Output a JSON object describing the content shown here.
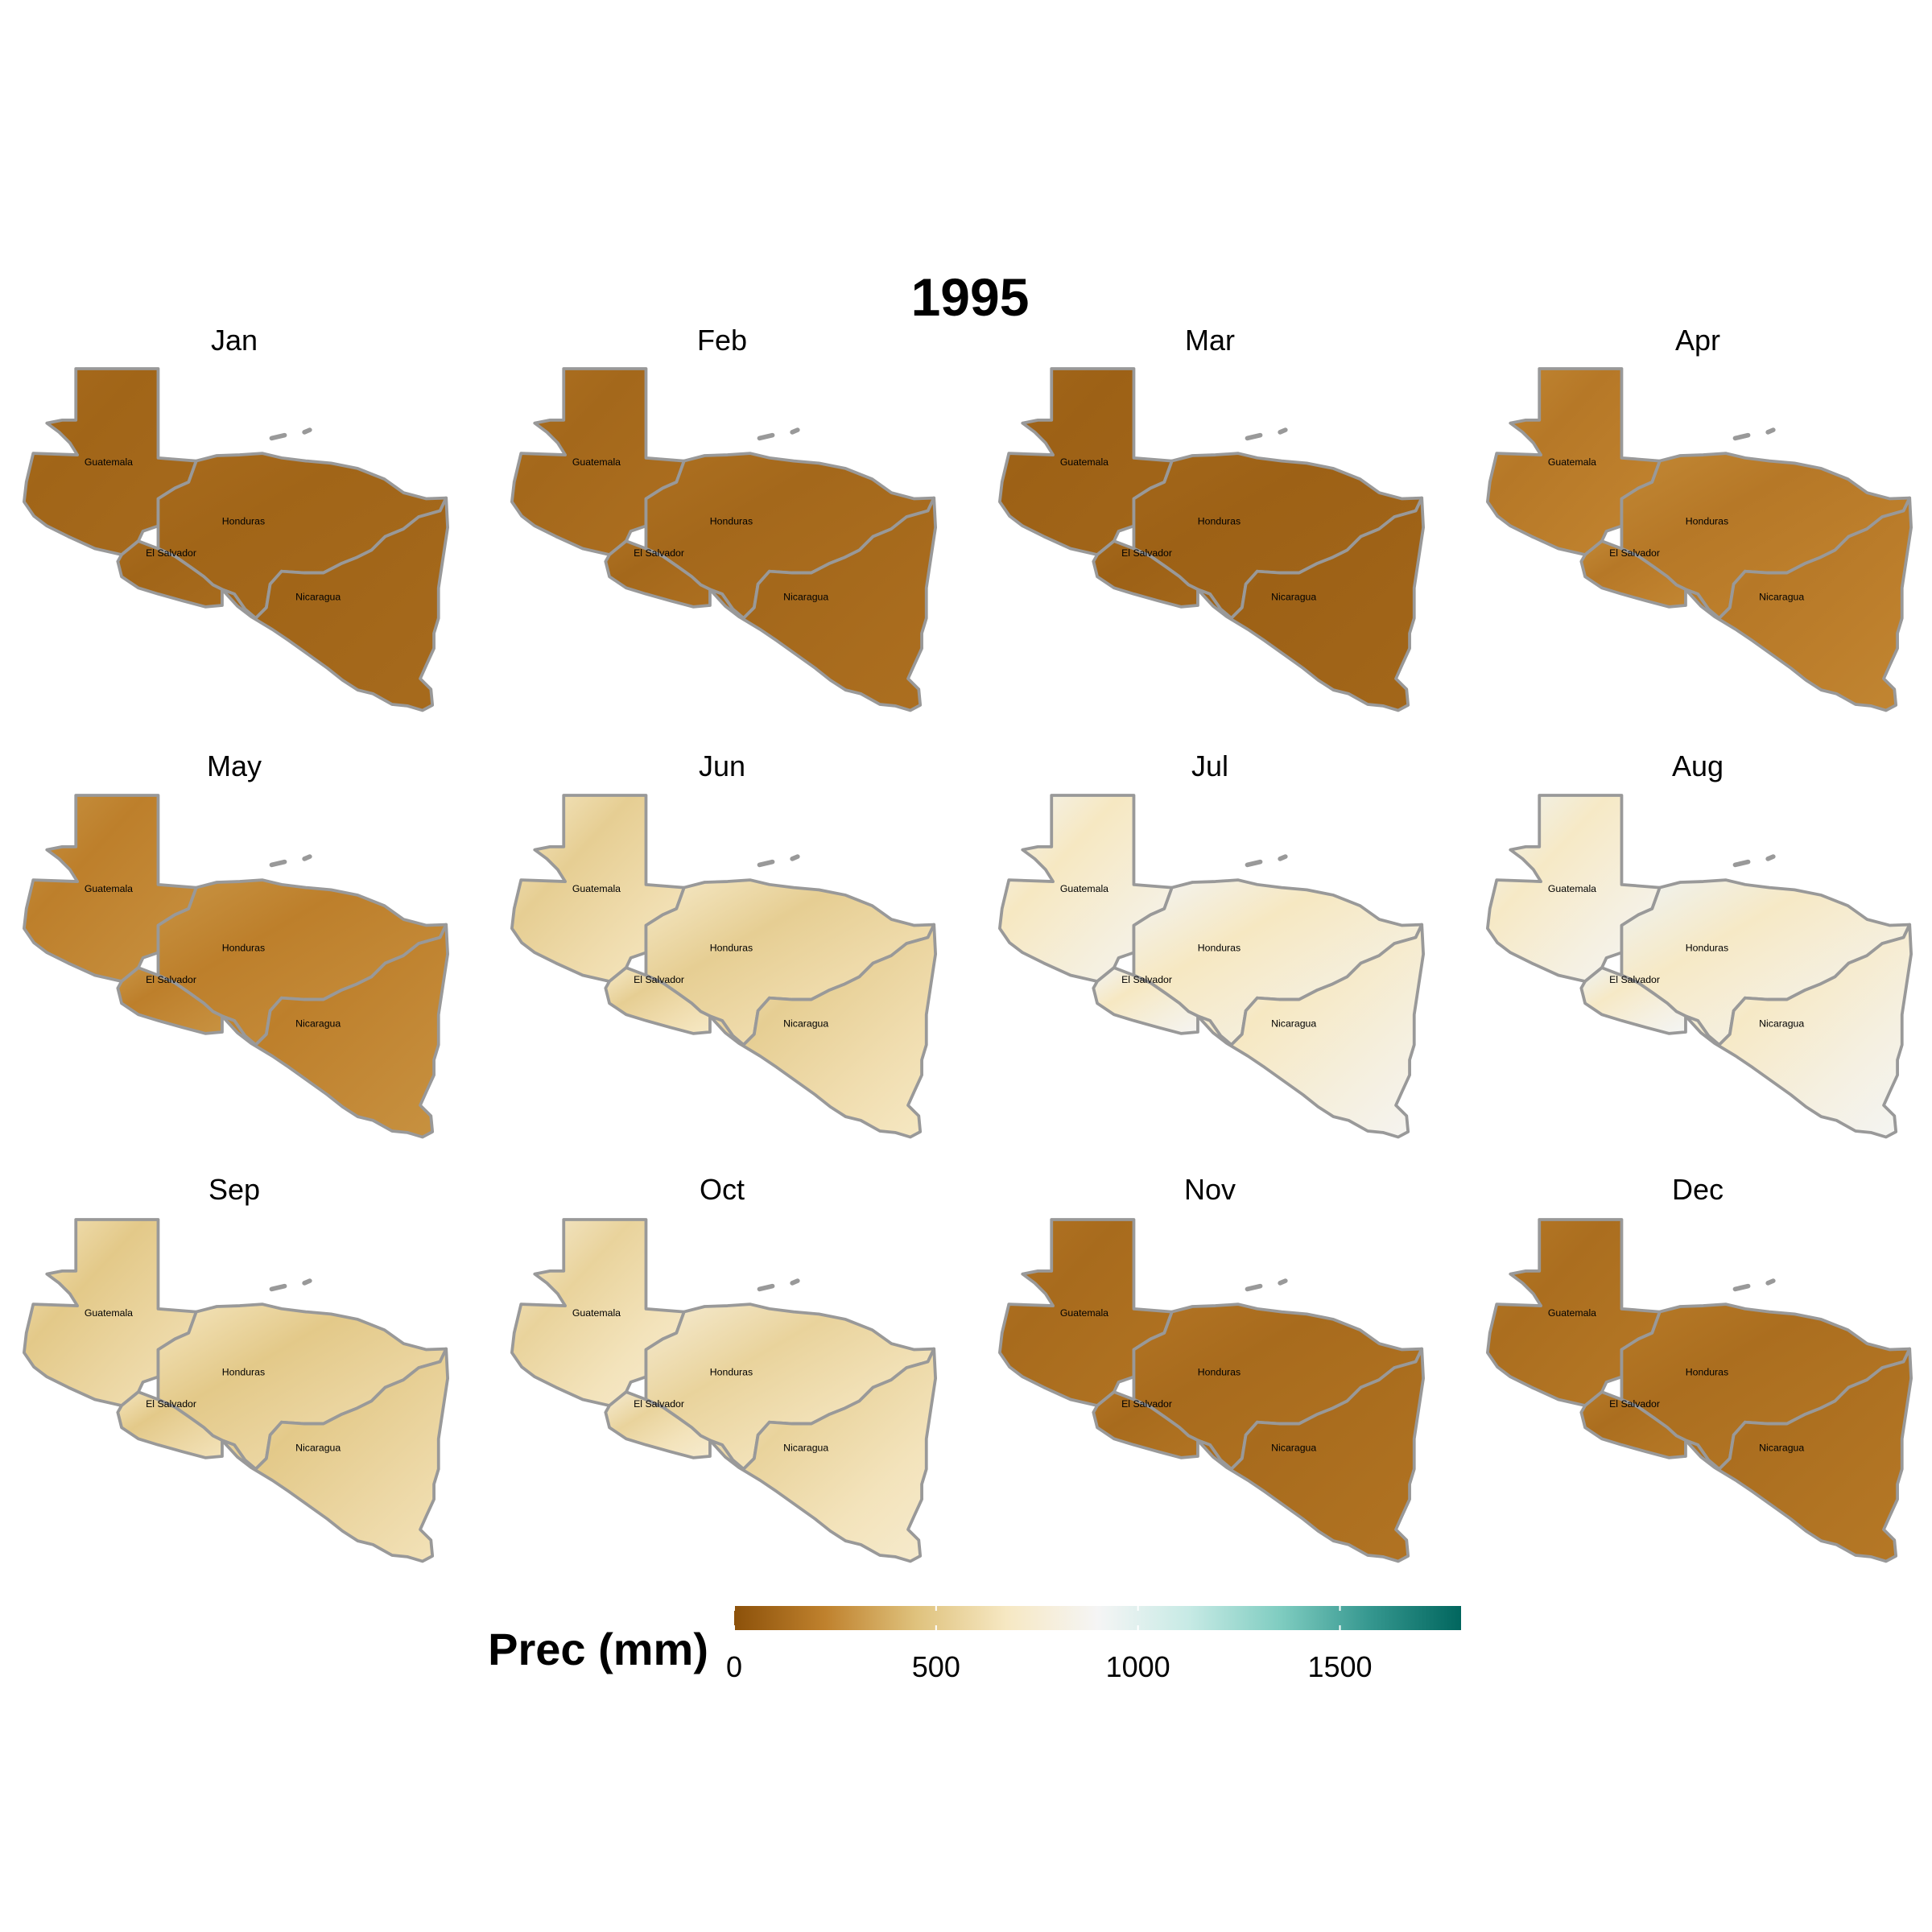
{
  "title": "1995",
  "countries": [
    "Guatemala",
    "Honduras",
    "El Salvador",
    "Nicaragua"
  ],
  "months": [
    {
      "name": "Jan",
      "tone": 0.06
    },
    {
      "name": "Feb",
      "tone": 0.07
    },
    {
      "name": "Mar",
      "tone": 0.05
    },
    {
      "name": "Apr",
      "tone": 0.12
    },
    {
      "name": "May",
      "tone": 0.14
    },
    {
      "name": "Jun",
      "tone": 0.34
    },
    {
      "name": "Jul",
      "tone": 0.44
    },
    {
      "name": "Aug",
      "tone": 0.45
    },
    {
      "name": "Sep",
      "tone": 0.32
    },
    {
      "name": "Oct",
      "tone": 0.36
    },
    {
      "name": "Nov",
      "tone": 0.08
    },
    {
      "name": "Dec",
      "tone": 0.09
    }
  ],
  "legend": {
    "title": "Prec (mm)",
    "min": 0,
    "max": 1800,
    "ticks": [
      0,
      500,
      1000,
      1500
    ],
    "palette": [
      "#8c510a",
      "#bf812d",
      "#dfc27d",
      "#f6e8c3",
      "#f5f5f5",
      "#c7eae5",
      "#80cdc1",
      "#35978f",
      "#01665e"
    ]
  },
  "colors": {
    "border": "#999999",
    "background": "#ffffff"
  }
}
